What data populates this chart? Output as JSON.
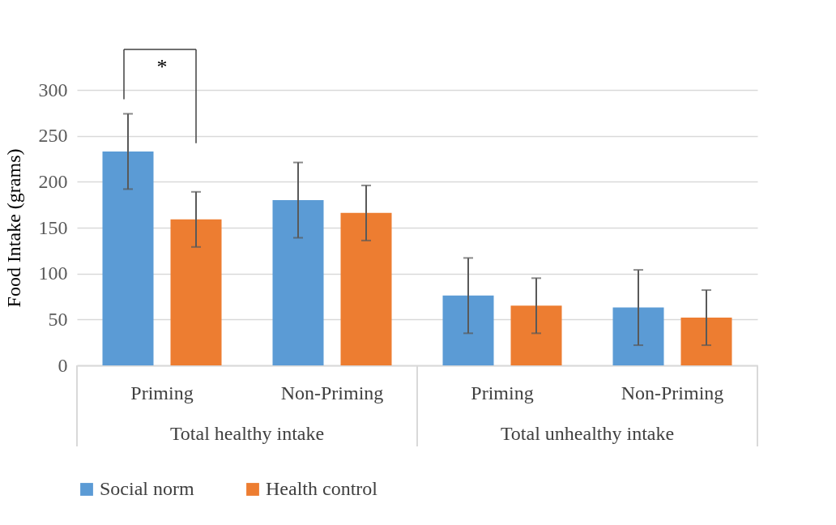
{
  "chart_data": {
    "type": "bar",
    "ylabel": "Food Intake (grams)",
    "categories": [
      "Priming",
      "Non-Priming",
      "Priming",
      "Non-Priming"
    ],
    "series": [
      {
        "name": "Social norm",
        "color": "#5b9bd5",
        "values": [
          233,
          180,
          76,
          63
        ],
        "errors": [
          41,
          41,
          41,
          41
        ]
      },
      {
        "name": "Health control",
        "color": "#ed7d31",
        "values": [
          159,
          166,
          65,
          52
        ],
        "errors": [
          30,
          30,
          30,
          30
        ]
      }
    ],
    "ylim": [
      0,
      300
    ],
    "yticks": [
      0,
      50,
      100,
      150,
      200,
      250,
      300
    ],
    "grid": "y",
    "legend": "bottom",
    "annotations": [
      "Total healthy intake",
      "Total unhealthy intake",
      "*"
    ]
  }
}
